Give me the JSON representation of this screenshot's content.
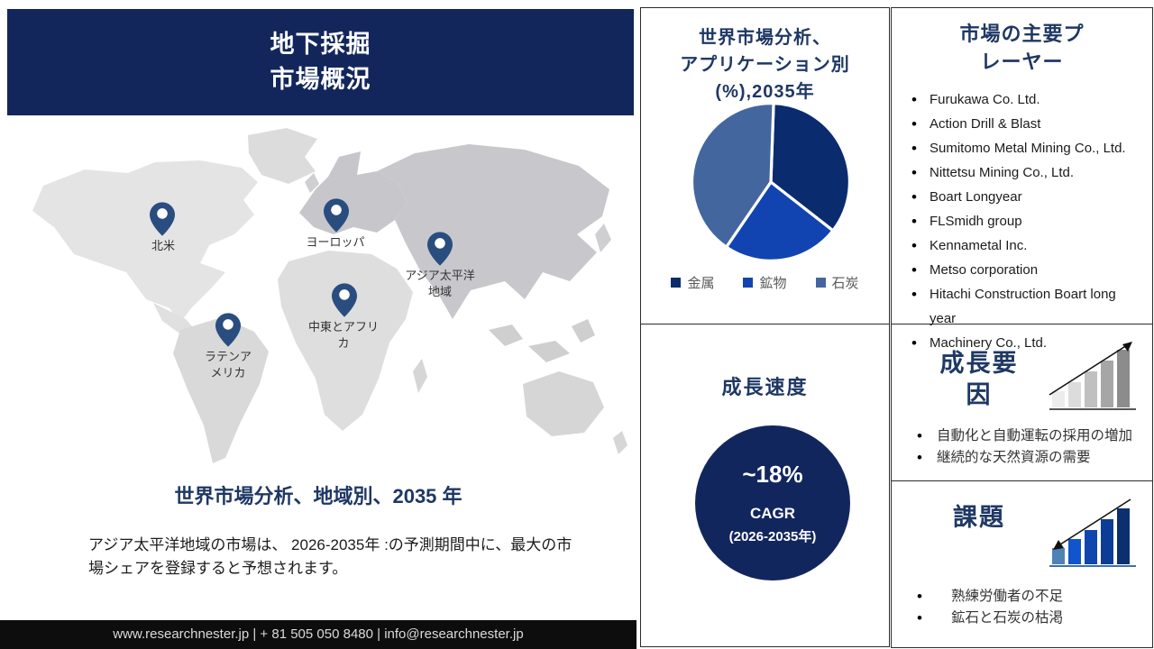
{
  "banner": {
    "lines": [
      "地下採掘",
      "市場概況"
    ]
  },
  "map": {
    "regions": [
      {
        "label": "北米"
      },
      {
        "label": "ヨーロッパ"
      },
      {
        "label": "アジア太平洋地域"
      },
      {
        "label": "中東とアフリカ"
      },
      {
        "label": "ラテンアメリカ"
      }
    ]
  },
  "left": {
    "caption": "世界市場分析、地域別、2035 年",
    "body": "アジア太平洋地域の市場は、 2026-2035年 :の予測期間中に、最大の市場シェアを登録すると予想されます。"
  },
  "footer": {
    "text": "www.researchnester.jp | + 81 505 050 8480 | info@researchnester.jp"
  },
  "pie_panel": {
    "title_lines": [
      "世界市場分析、",
      "アプリケーション別",
      "(%),2035年"
    ]
  },
  "chart_data": {
    "type": "pie",
    "title": "世界市場分析、アプリケーション別 (%),2035年",
    "labels": [
      "金属",
      "鉱物",
      "石炭"
    ],
    "values": [
      35,
      24,
      41
    ],
    "colors": [
      "#0b2b6f",
      "#1144b0",
      "#44669f"
    ],
    "start_angle": 2,
    "legend_position": "bottom"
  },
  "growth": {
    "title": "成長速度",
    "cagr_value": "~18%",
    "cagr_label": "CAGR",
    "cagr_period": "(2026-2035年)"
  },
  "players": {
    "title": "市場の主要プレーヤー",
    "items": [
      "Furukawa Co. Ltd.",
      "Action Drill & Blast",
      "Sumitomo Metal Mining Co., Ltd.",
      "Nittetsu Mining Co., Ltd.",
      "Boart Longyear",
      "FLSmidh group",
      "Kennametal Inc.",
      " Metso corporation",
      "Hitachi Construction Boart long year",
      "Machinery Co., Ltd."
    ]
  },
  "factors": {
    "title": "成長要因",
    "items": [
      "自動化と自動運転の採用の増加",
      "継続的な天然資源の需要"
    ]
  },
  "challenges": {
    "title": "課題",
    "items": [
      "熟練労働者の不足",
      "鉱石と石炭の枯渇"
    ]
  },
  "colors": {
    "banner_navy": "#13265c",
    "heading_navy": "#1f3864",
    "circle_navy": "#12265e",
    "pin_navy": "#2a4d7f",
    "footer_black": "#0d0d0d"
  }
}
